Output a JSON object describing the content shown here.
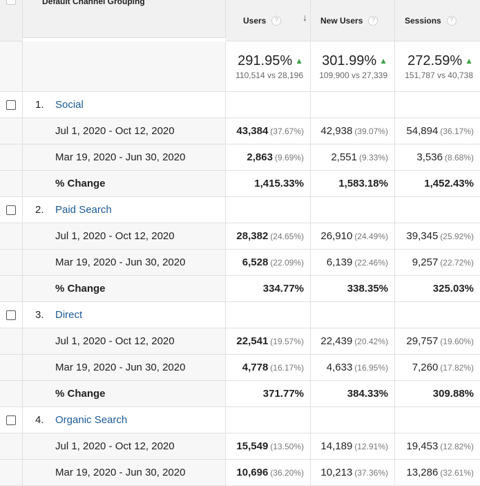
{
  "header": {
    "dimension": "Default Channel Grouping",
    "help_icon": "question-circle-icon",
    "sort_icon": "arrow-down-icon",
    "metrics": [
      "Users",
      "New Users",
      "Sessions"
    ]
  },
  "totals": [
    {
      "pct": "291.95%",
      "cmp": "110,514 vs 28,196"
    },
    {
      "pct": "301.99%",
      "cmp": "109,900 vs 27,339"
    },
    {
      "pct": "272.59%",
      "cmp": "151,787 vs 40,738"
    }
  ],
  "groups": [
    {
      "num": "1.",
      "name": "Social",
      "rows": [
        {
          "label": "Jul 1, 2020 - Oct 12, 2020",
          "values": [
            [
              "43,384",
              "(37.67%)"
            ],
            [
              "42,938",
              "(39.07%)"
            ],
            [
              "54,894",
              "(36.17%)"
            ]
          ]
        },
        {
          "label": "Mar 19, 2020 - Jun 30, 2020",
          "values": [
            [
              "2,863",
              "(9.69%)"
            ],
            [
              "2,551",
              "(9.33%)"
            ],
            [
              "3,536",
              "(8.68%)"
            ]
          ]
        }
      ],
      "change": {
        "label": "% Change",
        "values": [
          "1,415.33%",
          "1,583.18%",
          "1,452.43%"
        ]
      }
    },
    {
      "num": "2.",
      "name": "Paid Search",
      "rows": [
        {
          "label": "Jul 1, 2020 - Oct 12, 2020",
          "values": [
            [
              "28,382",
              "(24.65%)"
            ],
            [
              "26,910",
              "(24.49%)"
            ],
            [
              "39,345",
              "(25.92%)"
            ]
          ]
        },
        {
          "label": "Mar 19, 2020 - Jun 30, 2020",
          "values": [
            [
              "6,528",
              "(22.09%)"
            ],
            [
              "6,139",
              "(22.46%)"
            ],
            [
              "9,257",
              "(22.72%)"
            ]
          ]
        }
      ],
      "change": {
        "label": "% Change",
        "values": [
          "334.77%",
          "338.35%",
          "325.03%"
        ]
      }
    },
    {
      "num": "3.",
      "name": "Direct",
      "rows": [
        {
          "label": "Jul 1, 2020 - Oct 12, 2020",
          "values": [
            [
              "22,541",
              "(19.57%)"
            ],
            [
              "22,439",
              "(20.42%)"
            ],
            [
              "29,757",
              "(19.60%)"
            ]
          ]
        },
        {
          "label": "Mar 19, 2020 - Jun 30, 2020",
          "values": [
            [
              "4,778",
              "(16.17%)"
            ],
            [
              "4,633",
              "(16.95%)"
            ],
            [
              "7,260",
              "(17.82%)"
            ]
          ]
        }
      ],
      "change": {
        "label": "% Change",
        "values": [
          "371.77%",
          "384.33%",
          "309.88%"
        ]
      }
    },
    {
      "num": "4.",
      "name": "Organic Search",
      "rows": [
        {
          "label": "Jul 1, 2020 - Oct 12, 2020",
          "values": [
            [
              "15,549",
              "(13.50%)"
            ],
            [
              "14,189",
              "(12.91%)"
            ],
            [
              "19,453",
              "(12.82%)"
            ]
          ]
        },
        {
          "label": "Mar 19, 2020 - Jun 30, 2020",
          "values": [
            [
              "10,696",
              "(36.20%)"
            ],
            [
              "10,213",
              "(37.36%)"
            ],
            [
              "13,286",
              "(32.61%)"
            ]
          ]
        }
      ],
      "change": {
        "label": "% Change",
        "values": [
          "",
          "",
          ""
        ]
      }
    }
  ]
}
